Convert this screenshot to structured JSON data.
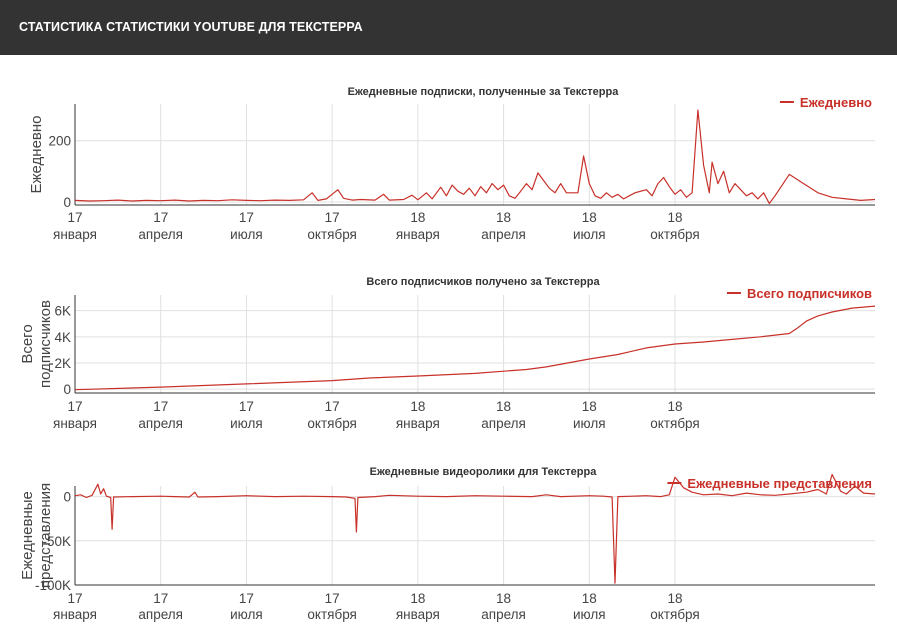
{
  "page": {
    "title": "СТАТИСТИКА СТАТИСТИКИ YOUTUBE ДЛЯ ТЕКСТЕРРА"
  },
  "colors": {
    "header_bg": "#333333",
    "series": "#c8312a",
    "grid": "#e0e0e0"
  },
  "x_axis": {
    "ticks": [
      {
        "top": "17",
        "bottom": "января"
      },
      {
        "top": "17",
        "bottom": "апреля"
      },
      {
        "top": "17",
        "bottom": "июля"
      },
      {
        "top": "17",
        "bottom": "октября"
      },
      {
        "top": "18",
        "bottom": "января"
      },
      {
        "top": "18",
        "bottom": "апреля"
      },
      {
        "top": "18",
        "bottom": "июля"
      },
      {
        "top": "18",
        "bottom": "октября"
      }
    ]
  },
  "chart_data": [
    {
      "type": "line",
      "title": "Ежедневные подписки, полученные за Текстерра",
      "xlabel": "",
      "ylabel": [
        "Ежедневно"
      ],
      "ylim": [
        -10,
        320
      ],
      "yticks": [
        {
          "value": 0,
          "label": "0"
        },
        {
          "value": 200,
          "label": "200"
        }
      ],
      "grid": true,
      "legend_position": "top-right",
      "x_unit": "month index from 17 января (0) to 18 октября (21)",
      "series": [
        {
          "name": "Ежедневно",
          "points": [
            [
              0,
              5
            ],
            [
              0.5,
              3
            ],
            [
              1,
              4
            ],
            [
              1.5,
              6
            ],
            [
              2,
              3
            ],
            [
              2.5,
              5
            ],
            [
              3,
              4
            ],
            [
              3.5,
              6
            ],
            [
              4,
              3
            ],
            [
              4.5,
              5
            ],
            [
              5,
              4
            ],
            [
              5.5,
              7
            ],
            [
              6,
              5
            ],
            [
              6.5,
              4
            ],
            [
              7,
              6
            ],
            [
              7.5,
              5
            ],
            [
              8,
              7
            ],
            [
              8.3,
              30
            ],
            [
              8.5,
              5
            ],
            [
              8.8,
              10
            ],
            [
              9,
              25
            ],
            [
              9.2,
              40
            ],
            [
              9.4,
              12
            ],
            [
              9.7,
              6
            ],
            [
              10,
              8
            ],
            [
              10.5,
              6
            ],
            [
              10.8,
              25
            ],
            [
              11,
              6
            ],
            [
              11.5,
              8
            ],
            [
              11.8,
              22
            ],
            [
              12,
              7
            ],
            [
              12.3,
              30
            ],
            [
              12.5,
              10
            ],
            [
              12.8,
              48
            ],
            [
              13,
              20
            ],
            [
              13.2,
              55
            ],
            [
              13.4,
              35
            ],
            [
              13.6,
              25
            ],
            [
              13.8,
              45
            ],
            [
              14,
              20
            ],
            [
              14.2,
              50
            ],
            [
              14.4,
              30
            ],
            [
              14.6,
              60
            ],
            [
              14.8,
              40
            ],
            [
              15,
              55
            ],
            [
              15.2,
              20
            ],
            [
              15.4,
              12
            ],
            [
              15.6,
              35
            ],
            [
              15.8,
              60
            ],
            [
              16,
              40
            ],
            [
              16.2,
              95
            ],
            [
              16.4,
              70
            ],
            [
              16.6,
              45
            ],
            [
              16.8,
              30
            ],
            [
              17,
              60
            ],
            [
              17.2,
              30
            ],
            [
              17.6,
              30
            ],
            [
              17.8,
              150
            ],
            [
              18,
              60
            ],
            [
              18.2,
              20
            ],
            [
              18.4,
              12
            ],
            [
              18.6,
              30
            ],
            [
              18.8,
              15
            ],
            [
              19,
              25
            ],
            [
              19.2,
              10
            ],
            [
              19.4,
              20
            ],
            [
              19.6,
              30
            ],
            [
              20,
              40
            ],
            [
              20.2,
              20
            ],
            [
              20.4,
              60
            ],
            [
              20.6,
              80
            ],
            [
              20.8,
              50
            ],
            [
              21,
              25
            ],
            [
              21.2,
              40
            ],
            [
              21.4,
              15
            ],
            [
              21.6,
              30
            ],
            [
              21.8,
              300
            ],
            [
              22,
              120
            ],
            [
              22.2,
              30
            ],
            [
              22.3,
              130
            ],
            [
              22.5,
              60
            ],
            [
              22.7,
              100
            ],
            [
              22.9,
              30
            ],
            [
              23.1,
              60
            ],
            [
              23.3,
              40
            ],
            [
              23.5,
              20
            ],
            [
              23.7,
              30
            ],
            [
              23.9,
              10
            ],
            [
              24.1,
              30
            ],
            [
              24.3,
              -5
            ],
            [
              24.5,
              20
            ],
            [
              25,
              90
            ],
            [
              25.5,
              60
            ],
            [
              26,
              30
            ],
            [
              26.5,
              15
            ],
            [
              27,
              10
            ],
            [
              27.5,
              5
            ],
            [
              28,
              8
            ]
          ]
        }
      ]
    },
    {
      "type": "line",
      "title": "Всего подписчиков получено за Текстерра",
      "xlabel": "",
      "ylabel": [
        "Всего",
        "подписчиков"
      ],
      "ylim": [
        -300,
        7200
      ],
      "yticks": [
        {
          "value": 0,
          "label": "0"
        },
        {
          "value": 2000,
          "label": "2K"
        },
        {
          "value": 4000,
          "label": "4K"
        },
        {
          "value": 6000,
          "label": "6K"
        }
      ],
      "grid": true,
      "legend_position": "top-right",
      "series": [
        {
          "name": "Всего подписчиков",
          "points": [
            [
              0,
              -50
            ],
            [
              3,
              150
            ],
            [
              6,
              400
            ],
            [
              9,
              650
            ],
            [
              10.3,
              850
            ],
            [
              12,
              1000
            ],
            [
              14,
              1200
            ],
            [
              15.8,
              1500
            ],
            [
              16.5,
              1700
            ],
            [
              18,
              2300
            ],
            [
              19,
              2650
            ],
            [
              20,
              3150
            ],
            [
              21,
              3450
            ],
            [
              22,
              3600
            ],
            [
              23,
              3800
            ],
            [
              24,
              4000
            ],
            [
              25,
              4250
            ],
            [
              25.3,
              4700
            ],
            [
              25.6,
              5200
            ],
            [
              26,
              5600
            ],
            [
              26.5,
              5900
            ],
            [
              27.2,
              6200
            ],
            [
              28,
              6350
            ]
          ]
        }
      ]
    },
    {
      "type": "line",
      "title": "Ежедневные видеоролики для Текстерра",
      "xlabel": "",
      "ylabel": [
        "Ежедневные",
        "представления"
      ],
      "ylim": [
        -100000,
        12000
      ],
      "yticks": [
        {
          "value": 0,
          "label": "0"
        },
        {
          "value": -50000,
          "label": "-50K"
        },
        {
          "value": -100000,
          "label": "-100K"
        }
      ],
      "grid": true,
      "legend_position": "top-right",
      "series": [
        {
          "name": "Ежедневные представления",
          "points": [
            [
              0,
              1000
            ],
            [
              0.2,
              2000
            ],
            [
              0.4,
              -1000
            ],
            [
              0.6,
              1500
            ],
            [
              0.8,
              14000
            ],
            [
              0.9,
              3000
            ],
            [
              1.0,
              9000
            ],
            [
              1.1,
              500
            ],
            [
              1.25,
              -1000
            ],
            [
              1.3,
              -37000
            ],
            [
              1.35,
              -500
            ],
            [
              2,
              0
            ],
            [
              3,
              500
            ],
            [
              3.5,
              0
            ],
            [
              4,
              -500
            ],
            [
              4.2,
              5000
            ],
            [
              4.3,
              -500
            ],
            [
              5,
              0
            ],
            [
              6,
              1000
            ],
            [
              7,
              0
            ],
            [
              8,
              500
            ],
            [
              9,
              0
            ],
            [
              9.5,
              -500
            ],
            [
              9.8,
              -2000
            ],
            [
              9.85,
              -40000
            ],
            [
              9.9,
              -1000
            ],
            [
              10.5,
              0
            ],
            [
              11,
              1500
            ],
            [
              12,
              500
            ],
            [
              13,
              0
            ],
            [
              14,
              1000
            ],
            [
              15,
              500
            ],
            [
              16,
              0
            ],
            [
              16.5,
              2000
            ],
            [
              17,
              0
            ],
            [
              18,
              1000
            ],
            [
              18.5,
              500
            ],
            [
              18.8,
              -500
            ],
            [
              18.9,
              -98000
            ],
            [
              19,
              0
            ],
            [
              19.5,
              500
            ],
            [
              20,
              1000
            ],
            [
              20.5,
              0
            ],
            [
              20.8,
              2000
            ],
            [
              21,
              22000
            ],
            [
              21.3,
              10000
            ],
            [
              21.6,
              5000
            ],
            [
              22,
              2000
            ],
            [
              22.5,
              3000
            ],
            [
              23,
              1000
            ],
            [
              23.5,
              4000
            ],
            [
              24,
              2000
            ],
            [
              24.5,
              1500
            ],
            [
              25,
              3000
            ],
            [
              25.6,
              5000
            ],
            [
              26,
              8000
            ],
            [
              26.3,
              3000
            ],
            [
              26.5,
              25000
            ],
            [
              26.8,
              6000
            ],
            [
              27,
              3000
            ],
            [
              27.3,
              12000
            ],
            [
              27.6,
              4000
            ],
            [
              28,
              3000
            ]
          ]
        }
      ]
    }
  ]
}
